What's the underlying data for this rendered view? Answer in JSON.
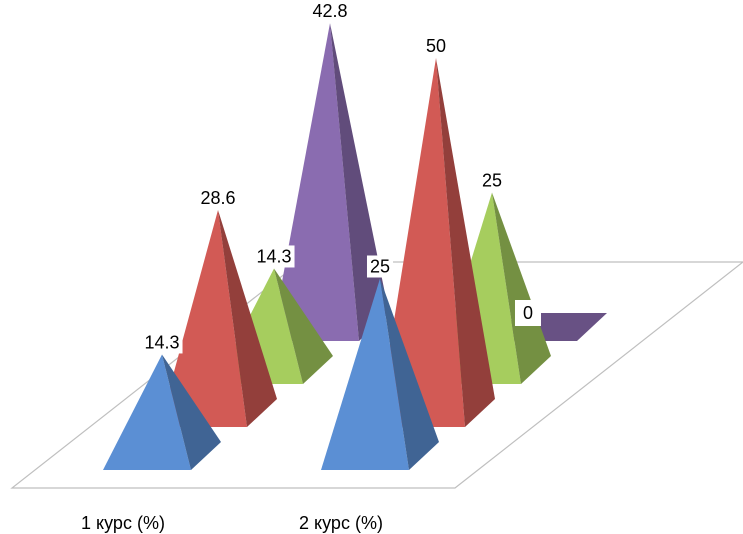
{
  "chart_data": {
    "type": "bar",
    "style": "3d-pyramid",
    "categories": [
      "1 курс (%)",
      "2 курс (%)"
    ],
    "series": [
      {
        "color": "#5b8fd4",
        "values": [
          14.3,
          25
        ]
      },
      {
        "color": "#d25a55",
        "values": [
          28.6,
          50
        ]
      },
      {
        "color": "#a6cd5e",
        "values": [
          14.3,
          25
        ]
      },
      {
        "color": "#8a6cb0",
        "values": [
          42.8,
          0
        ]
      }
    ],
    "data_labels": [
      [
        "14.3",
        "25"
      ],
      [
        "28.6",
        "50"
      ],
      [
        "14.3",
        "25"
      ],
      [
        "42.8",
        "0"
      ]
    ],
    "grid": false,
    "legend": "none"
  }
}
